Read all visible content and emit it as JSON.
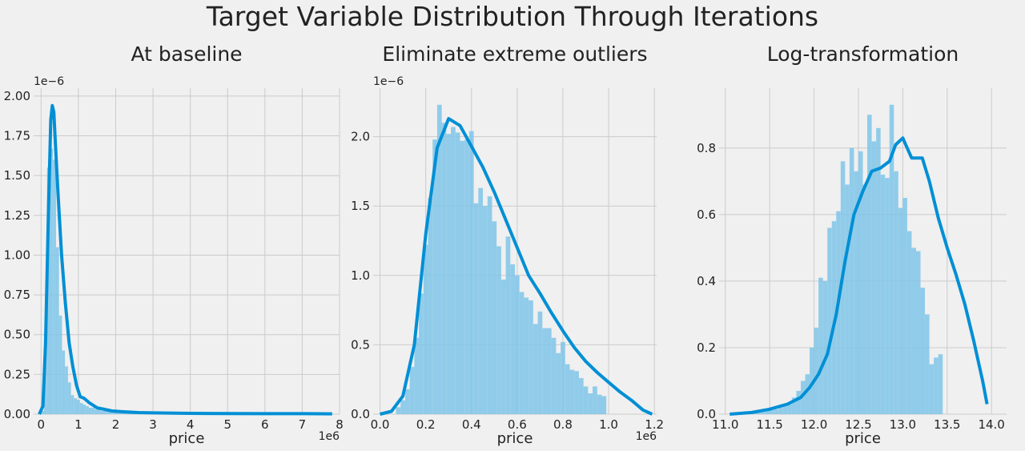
{
  "figure": {
    "title": "Target Variable Distribution Through Iterations"
  },
  "colors": {
    "background": "#f0f0f0",
    "grid": "#cbcbcb",
    "kde": "#008fd5",
    "hist": "#7fc6e9"
  },
  "chart_data": [
    {
      "type": "histogram+kde",
      "title": "At baseline",
      "xlabel": "price",
      "x_offset_label": "1e6",
      "y_offset_label": "1e−6",
      "xlim": [
        -0.2,
        8.0
      ],
      "ylim": [
        0,
        2.05
      ],
      "xticks": [
        0,
        1,
        2,
        3,
        4,
        5,
        6,
        7,
        8
      ],
      "xtick_labels": [
        "0",
        "1",
        "2",
        "3",
        "4",
        "5",
        "6",
        "7",
        "8"
      ],
      "yticks": [
        0,
        0.25,
        0.5,
        0.75,
        1.0,
        1.25,
        1.5,
        1.75,
        2.0
      ],
      "ytick_labels": [
        "0.00",
        "0.25",
        "0.50",
        "0.75",
        "1.00",
        "1.25",
        "1.50",
        "1.75",
        "2.00"
      ],
      "hist": {
        "bin_start": 0.0,
        "bin_width": 0.08,
        "values": [
          0.02,
          0.5,
          1.55,
          1.67,
          1.6,
          1.05,
          0.62,
          0.4,
          0.3,
          0.2,
          0.12,
          0.1,
          0.09,
          0.07,
          0.06,
          0.05,
          0.04,
          0.04,
          0.03,
          0.03,
          0.02,
          0.02,
          0.02,
          0.02,
          0.01,
          0.01,
          0.01,
          0.01,
          0.01,
          0.01,
          0.01,
          0.01,
          0.01,
          0.005,
          0.005,
          0.005,
          0.005,
          0.005,
          0.005,
          0.005,
          0.005,
          0.004,
          0.004,
          0.004,
          0.004,
          0.004,
          0.003,
          0.003,
          0.003,
          0.003,
          0.003,
          0.003,
          0.003,
          0.003,
          0.003,
          0.003,
          0.003,
          0.003,
          0.003,
          0.003,
          0.003,
          0.003,
          0.003,
          0.003,
          0.003,
          0.003,
          0.003,
          0.003,
          0.003,
          0.003,
          0.003,
          0.003,
          0.003,
          0.003,
          0.003,
          0.003,
          0.003,
          0.003,
          0.003,
          0.003,
          0.003,
          0.003,
          0.003,
          0.003,
          0.003,
          0.003,
          0.003,
          0.003,
          0.003,
          0.003,
          0.003,
          0.003,
          0.003,
          0.003,
          0.003,
          0.003,
          0.003,
          0.003
        ]
      },
      "kde": {
        "x": [
          -0.05,
          0.05,
          0.12,
          0.2,
          0.26,
          0.3,
          0.34,
          0.38,
          0.45,
          0.55,
          0.65,
          0.75,
          0.85,
          0.95,
          1.05,
          1.15,
          1.3,
          1.5,
          1.7,
          1.9,
          2.2,
          2.6,
          3.0,
          4.0,
          5.0,
          6.0,
          7.0,
          7.8
        ],
        "y": [
          0.0,
          0.05,
          0.45,
          1.3,
          1.85,
          1.94,
          1.9,
          1.72,
          1.4,
          1.0,
          0.7,
          0.45,
          0.3,
          0.18,
          0.11,
          0.1,
          0.07,
          0.04,
          0.03,
          0.02,
          0.015,
          0.01,
          0.008,
          0.005,
          0.004,
          0.003,
          0.003,
          0.002
        ]
      }
    },
    {
      "type": "histogram+kde",
      "title": "Eliminate extreme outliers",
      "xlabel": "price",
      "x_offset_label": "1e6",
      "y_offset_label": "1e−6",
      "xlim": [
        -0.03,
        1.21
      ],
      "ylim": [
        0,
        2.35
      ],
      "xticks": [
        0,
        0.2,
        0.4,
        0.6,
        0.8,
        1.0,
        1.2
      ],
      "xtick_labels": [
        "0.0",
        "0.2",
        "0.4",
        "0.6",
        "0.8",
        "1.0",
        "1.2"
      ],
      "yticks": [
        0,
        0.5,
        1.0,
        1.5,
        2.0
      ],
      "ytick_labels": [
        "0.0",
        "0.5",
        "1.0",
        "1.5",
        "2.0"
      ],
      "hist": {
        "bin_start": 0.07,
        "bin_width": 0.02,
        "values": [
          0.05,
          0.1,
          0.18,
          0.34,
          0.55,
          0.87,
          1.22,
          1.56,
          1.98,
          2.23,
          2.1,
          2.02,
          2.07,
          2.03,
          1.97,
          1.98,
          2.04,
          1.52,
          1.63,
          1.5,
          1.57,
          1.39,
          1.21,
          0.97,
          1.28,
          1.08,
          1.0,
          0.88,
          0.84,
          0.82,
          0.65,
          0.74,
          0.62,
          0.62,
          0.55,
          0.44,
          0.52,
          0.36,
          0.32,
          0.31,
          0.26,
          0.2,
          0.15,
          0.2,
          0.14,
          0.13
        ]
      },
      "kde": {
        "x": [
          0.0,
          0.05,
          0.1,
          0.15,
          0.2,
          0.25,
          0.3,
          0.35,
          0.4,
          0.45,
          0.5,
          0.55,
          0.6,
          0.65,
          0.7,
          0.75,
          0.8,
          0.85,
          0.9,
          0.95,
          1.0,
          1.05,
          1.1,
          1.15,
          1.19
        ],
        "y": [
          0.0,
          0.02,
          0.13,
          0.5,
          1.3,
          1.92,
          2.13,
          2.08,
          1.93,
          1.78,
          1.6,
          1.4,
          1.2,
          1.0,
          0.87,
          0.73,
          0.6,
          0.48,
          0.38,
          0.3,
          0.23,
          0.16,
          0.1,
          0.03,
          0.0
        ]
      }
    },
    {
      "type": "histogram+kde",
      "title": "Log-transformation",
      "xlabel": "price",
      "x_offset_label": "",
      "y_offset_label": "",
      "xlim": [
        10.93,
        14.17
      ],
      "ylim": [
        0,
        0.98
      ],
      "xticks": [
        11.0,
        11.5,
        12.0,
        12.5,
        13.0,
        13.5,
        14.0
      ],
      "xtick_labels": [
        "11.0",
        "11.5",
        "12.0",
        "12.5",
        "13.0",
        "13.5",
        "14.0"
      ],
      "yticks": [
        0,
        0.2,
        0.4,
        0.6,
        0.8
      ],
      "ytick_labels": [
        "0.0",
        "0.2",
        "0.4",
        "0.6",
        "0.8"
      ],
      "hist": {
        "bin_start": 11.3,
        "bin_width": 0.05,
        "values": [
          0.005,
          0.005,
          0.008,
          0.01,
          0.012,
          0.015,
          0.02,
          0.025,
          0.03,
          0.05,
          0.07,
          0.1,
          0.12,
          0.2,
          0.26,
          0.41,
          0.4,
          0.56,
          0.58,
          0.61,
          0.76,
          0.69,
          0.8,
          0.73,
          0.79,
          0.69,
          0.9,
          0.82,
          0.86,
          0.72,
          0.71,
          0.93,
          0.73,
          0.62,
          0.65,
          0.55,
          0.5,
          0.49,
          0.38,
          0.3,
          0.15,
          0.17,
          0.18
        ]
      },
      "kde": {
        "x": [
          11.05,
          11.3,
          11.5,
          11.7,
          11.85,
          11.95,
          12.05,
          12.15,
          12.25,
          12.35,
          12.45,
          12.55,
          12.65,
          12.75,
          12.85,
          12.92,
          13.0,
          13.05,
          13.1,
          13.15,
          13.22,
          13.3,
          13.4,
          13.5,
          13.6,
          13.7,
          13.8,
          13.9,
          13.95
        ],
        "y": [
          0.0,
          0.005,
          0.015,
          0.03,
          0.05,
          0.08,
          0.12,
          0.18,
          0.3,
          0.46,
          0.6,
          0.67,
          0.73,
          0.74,
          0.76,
          0.81,
          0.83,
          0.8,
          0.77,
          0.77,
          0.77,
          0.7,
          0.59,
          0.5,
          0.42,
          0.33,
          0.22,
          0.1,
          0.03
        ]
      }
    }
  ]
}
